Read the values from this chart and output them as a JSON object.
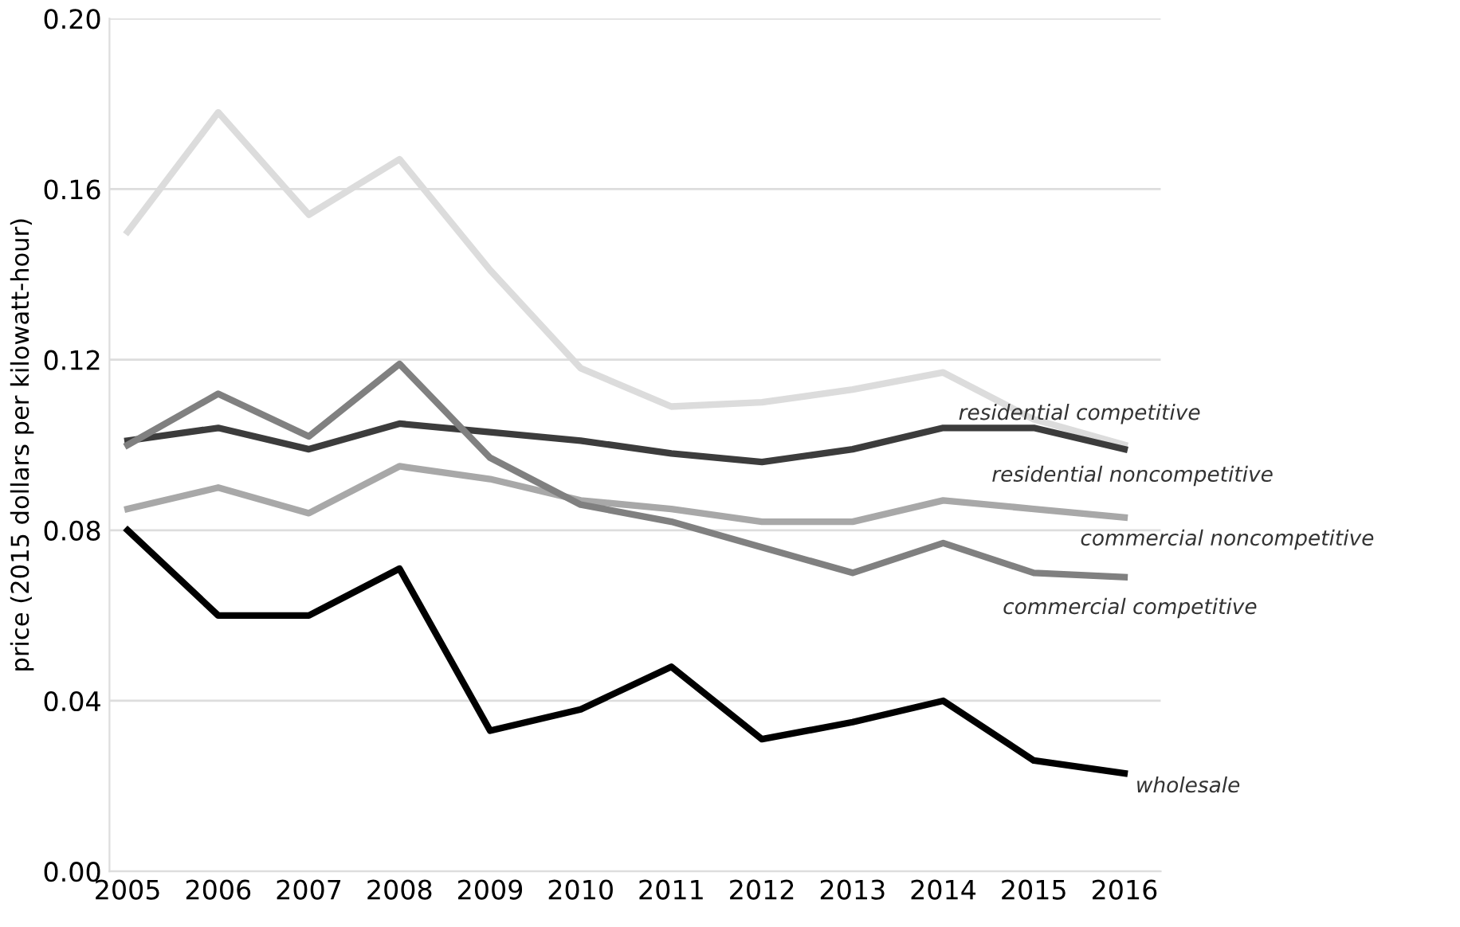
{
  "chart_data": {
    "type": "line",
    "ylabel": "price (2015 dollars per kilowatt-hour)",
    "categories": [
      "2005",
      "2006",
      "2007",
      "2008",
      "2009",
      "2010",
      "2011",
      "2012",
      "2013",
      "2014",
      "2015",
      "2016"
    ],
    "series": [
      {
        "name": "residential competitive",
        "color": "#dcdcdc",
        "values": [
          0.15,
          0.178,
          0.154,
          0.167,
          0.141,
          0.118,
          0.109,
          0.11,
          0.113,
          0.117,
          0.106,
          0.1
        ]
      },
      {
        "name": "residential noncompetitive",
        "color": "#3c3c3c",
        "values": [
          0.101,
          0.104,
          0.099,
          0.105,
          0.103,
          0.101,
          0.098,
          0.096,
          0.099,
          0.104,
          0.104,
          0.099
        ]
      },
      {
        "name": "commercial noncompetitive",
        "color": "#a8a8a8",
        "values": [
          0.085,
          0.09,
          0.084,
          0.095,
          0.092,
          0.087,
          0.085,
          0.082,
          0.082,
          0.087,
          0.085,
          0.083
        ]
      },
      {
        "name": "commercial competitive",
        "color": "#808080",
        "values": [
          0.1,
          0.112,
          0.102,
          0.119,
          0.097,
          0.086,
          0.082,
          0.076,
          0.07,
          0.077,
          0.07,
          0.069
        ]
      },
      {
        "name": "wholesale",
        "color": "#000000",
        "values": [
          0.08,
          0.06,
          0.06,
          0.071,
          0.033,
          0.038,
          0.048,
          0.031,
          0.035,
          0.04,
          0.026,
          0.023
        ]
      }
    ],
    "ylim": [
      0,
      0.2
    ],
    "yticks": [
      {
        "value": 0,
        "label": "0.00"
      },
      {
        "value": 0.04,
        "label": "0.04"
      },
      {
        "value": 0.08,
        "label": "0.08"
      },
      {
        "value": 0.12,
        "label": "0.12"
      },
      {
        "value": 0.16,
        "label": "0.16"
      },
      {
        "value": 0.2,
        "label": "0.20"
      }
    ],
    "grid": "y",
    "legend": false,
    "marker": "none",
    "line_style": "solid"
  }
}
